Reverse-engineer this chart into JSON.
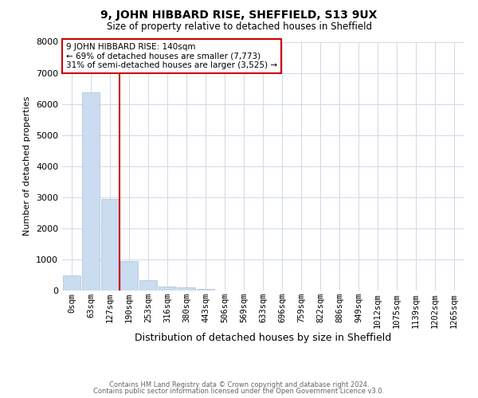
{
  "title": "9, JOHN HIBBARD RISE, SHEFFIELD, S13 9UX",
  "subtitle": "Size of property relative to detached houses in Sheffield",
  "xlabel": "Distribution of detached houses by size in Sheffield",
  "ylabel": "Number of detached properties",
  "bar_color": "#c9dcf0",
  "bar_edge_color": "#aabfd8",
  "categories": [
    "0sqm",
    "63sqm",
    "127sqm",
    "190sqm",
    "253sqm",
    "316sqm",
    "380sqm",
    "443sqm",
    "506sqm",
    "569sqm",
    "633sqm",
    "696sqm",
    "759sqm",
    "822sqm",
    "886sqm",
    "949sqm",
    "1012sqm",
    "1075sqm",
    "1139sqm",
    "1202sqm",
    "1265sqm"
  ],
  "values": [
    480,
    6380,
    2940,
    960,
    340,
    130,
    90,
    60,
    0,
    0,
    0,
    0,
    0,
    0,
    0,
    0,
    0,
    0,
    0,
    0,
    0
  ],
  "ylim": [
    0,
    8000
  ],
  "yticks": [
    0,
    1000,
    2000,
    3000,
    4000,
    5000,
    6000,
    7000,
    8000
  ],
  "vline_x": 2.5,
  "vline_color": "#cc0000",
  "annotation_text": "9 JOHN HIBBARD RISE: 140sqm\n← 69% of detached houses are smaller (7,773)\n31% of semi-detached houses are larger (3,525) →",
  "annotation_box_color": "#ffffff",
  "annotation_box_edge": "#cc0000",
  "footer_line1": "Contains HM Land Registry data © Crown copyright and database right 2024.",
  "footer_line2": "Contains public sector information licensed under the Open Government Licence v3.0.",
  "bg_color": "#ffffff",
  "grid_color": "#d0d8e8",
  "title_fontsize": 10,
  "subtitle_fontsize": 8.5,
  "ylabel_fontsize": 8,
  "xlabel_fontsize": 9,
  "tick_fontsize": 7.5,
  "annot_fontsize": 7.5,
  "footer_fontsize": 6
}
